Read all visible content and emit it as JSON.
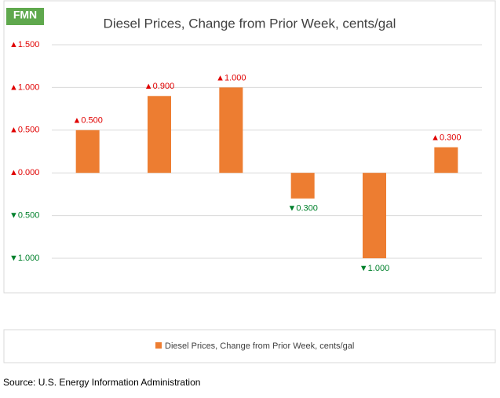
{
  "chart_data": {
    "type": "bar",
    "title": "Diesel Prices, Change from Prior Week, cents/gal",
    "logo": "FMN",
    "categories": [
      null,
      null,
      null,
      null,
      null,
      null
    ],
    "series": [
      {
        "name": "Diesel Prices, Change from Prior Week, cents/gal",
        "color": "#ed7d31",
        "values": [
          0.5,
          0.9,
          1.0,
          -0.3,
          -1.0,
          0.3
        ],
        "value_labels": [
          "▲0.500",
          "▲0.900",
          "▲1.000",
          "▼0.300",
          "▼1.000",
          "▲0.300"
        ]
      }
    ],
    "ylim": [
      -1.0,
      1.5
    ],
    "yticks": [
      {
        "value": 1.5,
        "label": "▲1.500"
      },
      {
        "value": 1.0,
        "label": "▲1.000"
      },
      {
        "value": 0.5,
        "label": "▲0.500"
      },
      {
        "value": 0,
        "label": "▲0.000"
      },
      {
        "value": -0.5,
        "label": "▼0.500"
      },
      {
        "value": -1.0,
        "label": "▼1.000"
      }
    ],
    "grid": true,
    "positive_label_color": "#e00000",
    "negative_label_color": "#00802b",
    "source": "Source: U.S. Energy Information Administration"
  }
}
